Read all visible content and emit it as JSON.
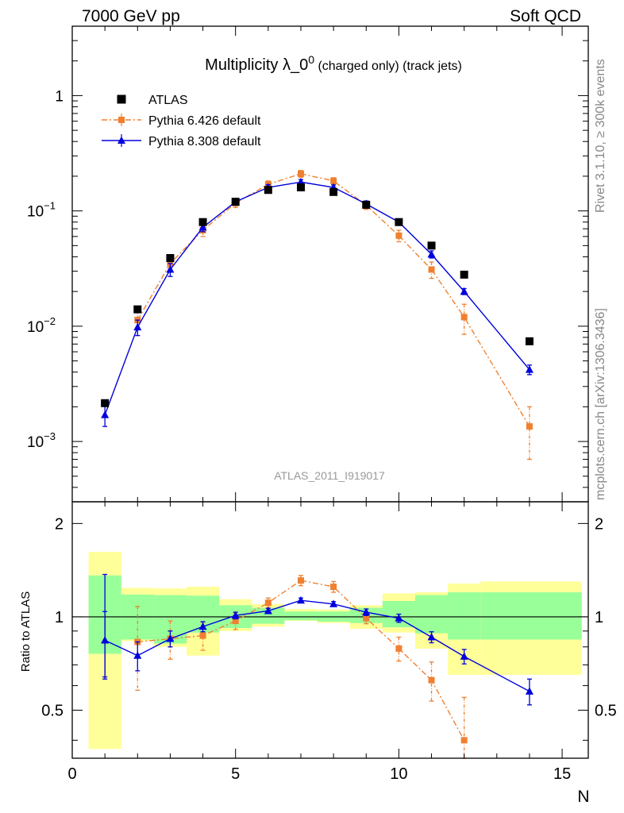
{
  "header": {
    "left": "7000 GeV pp",
    "right": "Soft QCD"
  },
  "side_labels": {
    "rivet": "Rivet 3.1.10, ≥ 300k events",
    "mcplots": "mcplots.cern.ch [arXiv:1306.3436]"
  },
  "colors": {
    "atlas": "#000000",
    "pythia6": "#f08030",
    "pythia8": "#0000dd",
    "band_inner": "#99ff99",
    "band_outer": "#ffff99"
  },
  "chart_data": [
    {
      "id": "main",
      "type": "scatter",
      "title": "Multiplicity λ_0",
      "title_sup": "0",
      "title_suffix": " (charged only) (track jets)",
      "watermark": "ATLAS_2011_I919017",
      "yscale": "log",
      "ylim": [
        0.0003,
        4
      ],
      "xlim": [
        0,
        15.8
      ],
      "yticks": [
        {
          "value": 0.001,
          "base": "10",
          "exp": "−3"
        },
        {
          "value": 0.01,
          "base": "10",
          "exp": "−2"
        },
        {
          "value": 0.1,
          "base": "10",
          "exp": "−1"
        },
        {
          "value": 1,
          "base": "1",
          "exp": ""
        }
      ],
      "legend": [
        {
          "name": "ATLAS",
          "marker": "square"
        },
        {
          "name": "Pythia 6.426 default",
          "marker": "small-square"
        },
        {
          "name": "Pythia 8.308 default",
          "marker": "triangle"
        }
      ],
      "series": [
        {
          "name": "ATLAS",
          "x": [
            1,
            2,
            3,
            4,
            5,
            6,
            7,
            8,
            9,
            10,
            11,
            12,
            14
          ],
          "y": [
            0.00215,
            0.014,
            0.039,
            0.08,
            0.12,
            0.152,
            0.16,
            0.146,
            0.113,
            0.08,
            0.05,
            0.028,
            0.0074
          ]
        },
        {
          "name": "Pythia 6.426 default",
          "x": [
            2,
            3,
            4,
            5,
            6,
            7,
            8,
            9,
            10,
            11,
            12,
            14
          ],
          "y": [
            0.0113,
            0.035,
            0.068,
            0.117,
            0.17,
            0.21,
            0.182,
            0.112,
            0.061,
            0.031,
            0.012,
            0.00135
          ],
          "err": [
            0.003,
            0.005,
            0.008,
            0.01,
            0.012,
            0.014,
            0.012,
            0.009,
            0.007,
            0.005,
            0.0035,
            0.00065
          ]
        },
        {
          "name": "Pythia 8.308 default",
          "x": [
            1,
            2,
            3,
            4,
            5,
            6,
            7,
            8,
            9,
            10,
            11,
            12,
            14
          ],
          "y": [
            0.0017,
            0.0098,
            0.031,
            0.072,
            0.12,
            0.16,
            0.178,
            0.16,
            0.115,
            0.08,
            0.042,
            0.02,
            0.0042
          ],
          "err": [
            0.00035,
            0.0015,
            0.004,
            0.006,
            0.008,
            0.009,
            0.009,
            0.008,
            0.007,
            0.005,
            0.003,
            0.0012,
            0.0004
          ]
        }
      ]
    },
    {
      "id": "ratio",
      "type": "scatter",
      "ylabel": "Ratio to ATLAS",
      "xlabel": "N",
      "yscale": "log",
      "ylim": [
        0.35,
        2.35
      ],
      "xlim": [
        0,
        15.8
      ],
      "yticks": [
        0.5,
        1,
        2
      ],
      "ytick_labels": [
        "0.5",
        "1",
        "2"
      ],
      "xticks": [
        0,
        5,
        10,
        15
      ],
      "xtick_labels": [
        "0",
        "5",
        "10",
        "15"
      ],
      "bands": [
        {
          "x0": 0.5,
          "x1": 1.5,
          "inner": [
            0.76,
            1.36
          ],
          "outer": [
            0.375,
            1.62
          ]
        },
        {
          "x0": 1.5,
          "x1": 2.5,
          "inner": [
            0.845,
            1.18
          ],
          "outer": [
            0.835,
            1.24
          ]
        },
        {
          "x0": 2.5,
          "x1": 3.5,
          "inner": [
            0.82,
            1.175
          ],
          "outer": [
            0.8,
            1.235
          ]
        },
        {
          "x0": 3.5,
          "x1": 4.5,
          "inner": [
            0.89,
            1.17
          ],
          "outer": [
            0.75,
            1.25
          ]
        },
        {
          "x0": 4.5,
          "x1": 5.5,
          "inner": [
            0.92,
            1.09
          ],
          "outer": [
            0.9,
            1.14
          ]
        },
        {
          "x0": 5.5,
          "x1": 6.5,
          "inner": [
            0.95,
            1.07
          ],
          "outer": [
            0.93,
            1.1
          ]
        },
        {
          "x0": 6.5,
          "x1": 7.5,
          "inner": [
            0.975,
            1.04
          ],
          "outer": [
            0.97,
            1.06
          ]
        },
        {
          "x0": 7.5,
          "x1": 8.5,
          "inner": [
            0.965,
            1.04
          ],
          "outer": [
            0.955,
            1.055
          ]
        },
        {
          "x0": 8.5,
          "x1": 9.5,
          "inner": [
            0.955,
            1.07
          ],
          "outer": [
            0.915,
            1.09
          ]
        },
        {
          "x0": 9.5,
          "x1": 10.5,
          "inner": [
            0.925,
            1.125
          ],
          "outer": [
            0.89,
            1.19
          ]
        },
        {
          "x0": 10.5,
          "x1": 11.5,
          "inner": [
            0.885,
            1.175
          ],
          "outer": [
            0.79,
            1.2
          ]
        },
        {
          "x0": 11.5,
          "x1": 12.5,
          "inner": [
            0.845,
            1.2
          ],
          "outer": [
            0.65,
            1.28
          ]
        },
        {
          "x0": 12.5,
          "x1": 15.6,
          "inner": [
            0.845,
            1.2
          ],
          "outer": [
            0.65,
            1.3
          ]
        }
      ],
      "series": [
        {
          "name": "ATLAS",
          "x": [
            1
          ],
          "y": [
            1
          ],
          "err": [
            0.37
          ]
        },
        {
          "name": "Pythia 6.426 default",
          "x": [
            2,
            3,
            4,
            5,
            6,
            7,
            8,
            9,
            10,
            11,
            12
          ],
          "y": [
            0.83,
            0.85,
            0.87,
            0.97,
            1.11,
            1.31,
            1.25,
            0.99,
            0.79,
            0.625,
            0.4
          ],
          "err": [
            0.25,
            0.12,
            0.09,
            0.06,
            0.04,
            0.05,
            0.05,
            0.04,
            0.07,
            0.09,
            0.15
          ]
        },
        {
          "name": "Pythia 8.308 default",
          "x": [
            1,
            2,
            3,
            4,
            5,
            6,
            7,
            8,
            9,
            10,
            11,
            12,
            14
          ],
          "y": [
            0.84,
            0.75,
            0.85,
            0.93,
            1.01,
            1.045,
            1.13,
            1.1,
            1.035,
            0.99,
            0.86,
            0.745,
            0.575
          ],
          "err": [
            0.2,
            0.08,
            0.05,
            0.035,
            0.025,
            0.02,
            0.02,
            0.02,
            0.025,
            0.03,
            0.035,
            0.04,
            0.055
          ]
        }
      ]
    }
  ]
}
